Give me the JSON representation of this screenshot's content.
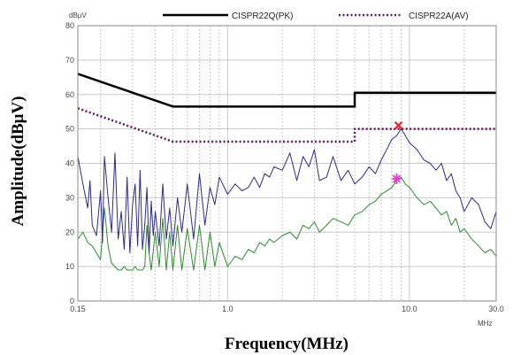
{
  "chart_data": {
    "type": "line",
    "xlabel": "Frequency(MHz)",
    "ylabel": "Amplitude(dBμV)",
    "y_unit_label": "dBμV",
    "x_unit_label": "MHz",
    "x_scale": "log",
    "xlim": [
      0.15,
      30.0
    ],
    "ylim": [
      0,
      80
    ],
    "x_ticks": [
      {
        "value": 0.15,
        "label": "0.15"
      },
      {
        "value": 1.0,
        "label": "1.0"
      },
      {
        "value": 10.0,
        "label": "10.0"
      },
      {
        "value": 30.0,
        "label": "30.0"
      }
    ],
    "y_ticks": [
      0,
      10,
      20,
      30,
      40,
      50,
      60,
      70,
      80
    ],
    "grid": true,
    "legend_position": "top",
    "colors": {
      "limit": "#000000",
      "peak_trace": "#2b2b8c",
      "average_trace": "#2e8b2e",
      "peak_marker": "#e8202a",
      "average_marker": "#e040d0",
      "grid": "#c8c8c8"
    },
    "series": [
      {
        "name": "CISPR22Q(PK)",
        "role": "limit",
        "x": [
          0.15,
          0.5,
          5.0,
          5.0,
          30.0
        ],
        "y": [
          66,
          56.5,
          56.5,
          60.5,
          60.5
        ]
      },
      {
        "name": "CISPR22A(AV)",
        "role": "limit-dotted",
        "x": [
          0.15,
          0.5,
          5.0,
          5.0,
          30.0
        ],
        "y": [
          56,
          46.3,
          46.3,
          50,
          50
        ]
      },
      {
        "role": "peak-trace",
        "x": [
          0.15,
          0.16,
          0.17,
          0.175,
          0.18,
          0.19,
          0.2,
          0.205,
          0.21,
          0.22,
          0.23,
          0.24,
          0.25,
          0.26,
          0.27,
          0.28,
          0.29,
          0.3,
          0.31,
          0.32,
          0.33,
          0.34,
          0.35,
          0.36,
          0.37,
          0.38,
          0.39,
          0.4,
          0.42,
          0.44,
          0.46,
          0.48,
          0.5,
          0.53,
          0.56,
          0.6,
          0.65,
          0.7,
          0.75,
          0.8,
          0.85,
          0.9,
          1.0,
          1.1,
          1.2,
          1.3,
          1.4,
          1.5,
          1.6,
          1.7,
          1.8,
          2.0,
          2.2,
          2.4,
          2.6,
          2.8,
          3.0,
          3.2,
          3.5,
          3.8,
          4.2,
          4.6,
          5.0,
          5.5,
          6.0,
          6.5,
          7.0,
          7.5,
          8.0,
          8.5,
          9.0,
          9.5,
          10.0,
          11.0,
          12.0,
          13.0,
          14.0,
          15.0,
          16.0,
          17.0,
          18.0,
          19.0,
          20.0,
          22.0,
          24.0,
          26.0,
          28.0,
          30.0
        ],
        "y": [
          42,
          34,
          27,
          35,
          22,
          19,
          32,
          17,
          42,
          30,
          20,
          43,
          18,
          26,
          15,
          36,
          14,
          28,
          34,
          16,
          38,
          15,
          22,
          33,
          14,
          29,
          19,
          26,
          16,
          34,
          18,
          27,
          16,
          30,
          20,
          34,
          18,
          37,
          22,
          33,
          28,
          36,
          31,
          34,
          32,
          33,
          36,
          33,
          37,
          36,
          39,
          38,
          43,
          35,
          42,
          39,
          44,
          35,
          36,
          42,
          35,
          38,
          34,
          36,
          39,
          37,
          41,
          44,
          47,
          48,
          50,
          48,
          46,
          44,
          41,
          40,
          38,
          40,
          35,
          37,
          32,
          30,
          26,
          30,
          28,
          23,
          21,
          26
        ]
      },
      {
        "role": "average-trace",
        "x": [
          0.15,
          0.16,
          0.17,
          0.18,
          0.19,
          0.2,
          0.21,
          0.22,
          0.23,
          0.24,
          0.25,
          0.26,
          0.27,
          0.28,
          0.29,
          0.3,
          0.31,
          0.32,
          0.33,
          0.34,
          0.35,
          0.36,
          0.37,
          0.38,
          0.4,
          0.42,
          0.44,
          0.46,
          0.48,
          0.5,
          0.53,
          0.56,
          0.6,
          0.65,
          0.7,
          0.75,
          0.8,
          0.85,
          0.9,
          1.0,
          1.1,
          1.2,
          1.3,
          1.4,
          1.5,
          1.6,
          1.7,
          1.8,
          2.0,
          2.2,
          2.4,
          2.6,
          2.8,
          3.0,
          3.2,
          3.5,
          3.8,
          4.2,
          4.6,
          5.0,
          5.5,
          6.0,
          6.5,
          7.0,
          7.5,
          8.0,
          8.5,
          9.0,
          9.5,
          10.0,
          11.0,
          12.0,
          13.0,
          14.0,
          15.0,
          16.0,
          17.0,
          18.0,
          19.0,
          20.0,
          22.0,
          24.0,
          26.0,
          28.0,
          30.0
        ],
        "y": [
          18,
          20,
          17,
          16,
          14,
          12,
          27,
          16,
          11,
          10,
          9,
          9,
          10,
          9,
          9,
          9,
          10,
          9,
          9,
          9,
          10,
          22,
          14,
          9,
          20,
          10,
          24,
          9,
          20,
          9,
          22,
          9,
          21,
          9,
          22,
          9,
          20,
          10,
          17,
          10,
          13,
          12,
          15,
          14,
          17,
          16,
          18,
          17,
          19,
          20,
          18,
          22,
          21,
          23,
          20,
          22,
          24,
          23,
          22,
          25,
          26,
          28,
          29,
          31,
          32,
          33,
          35,
          36,
          34,
          33,
          30,
          28,
          29,
          27,
          25,
          26,
          22,
          24,
          20,
          21,
          18,
          16,
          14,
          15,
          13
        ]
      }
    ],
    "markers": [
      {
        "role": "peak-marker",
        "symbol": "x",
        "x": 8.7,
        "y": 51
      },
      {
        "role": "average-marker",
        "symbol": "asterisk",
        "x": 8.5,
        "y": 35.5
      }
    ]
  }
}
